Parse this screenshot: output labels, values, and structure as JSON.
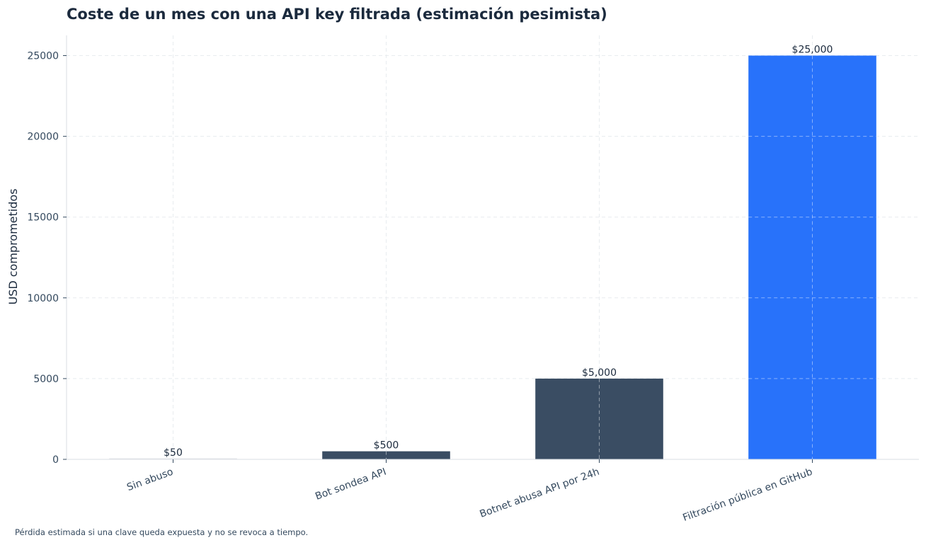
{
  "chart_data": {
    "type": "bar",
    "title": "Coste de un mes con una API key filtrada (estimación pesimista)",
    "xlabel": "",
    "ylabel": "USD comprometidos",
    "categories": [
      "Sin abuso",
      "Bot sondea API",
      "Botnet abusa API por 24h",
      "Filtración pública en GitHub"
    ],
    "values": [
      50,
      500,
      5000,
      25000
    ],
    "data_labels": [
      "$50",
      "$500",
      "$5,000",
      "$25,000"
    ],
    "bar_colors": [
      "#e5e7eb",
      "#3a4d63",
      "#3a4d63",
      "#2872fa"
    ],
    "ylim": [
      0,
      26250
    ],
    "yticks": [
      0,
      5000,
      10000,
      15000,
      20000,
      25000
    ],
    "ytick_labels": [
      "0",
      "5000",
      "10000",
      "15000",
      "20000",
      "25000"
    ],
    "grid": true,
    "colors": {
      "title": "#1b2a3d",
      "axis_text": "#34495e",
      "grid": "#e8ecef",
      "axis_line": "#d9dee3",
      "data_label": "#1b2a3d"
    }
  },
  "footnote": "Pérdida estimada si una clave queda expuesta y no se revoca a tiempo."
}
